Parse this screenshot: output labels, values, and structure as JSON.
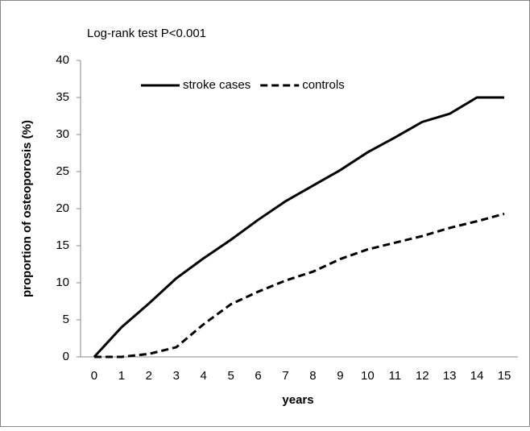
{
  "chart_data": {
    "type": "line",
    "annotation": "Log-rank test P<0.001",
    "xlabel": "years",
    "ylabel": "proportion of osteoporosis (%)",
    "x": [
      0,
      1,
      2,
      3,
      4,
      5,
      6,
      7,
      8,
      9,
      10,
      11,
      12,
      13,
      14,
      15
    ],
    "series": [
      {
        "name": "stroke cases",
        "color": "#000000",
        "dash": "solid",
        "values": [
          0,
          4,
          7.2,
          10.6,
          13.3,
          15.8,
          18.5,
          21,
          23.1,
          25.2,
          27.6,
          29.6,
          31.7,
          32.8,
          35,
          35
        ]
      },
      {
        "name": "controls",
        "color": "#000000",
        "dash": "dashed",
        "values": [
          0,
          0,
          0.4,
          1.3,
          4.4,
          7.1,
          8.8,
          10.3,
          11.5,
          13.2,
          14.5,
          15.4,
          16.3,
          17.4,
          18.3,
          19.3
        ]
      }
    ],
    "xlim": [
      -0.5,
      15.5
    ],
    "xticks": [
      0,
      1,
      2,
      3,
      4,
      5,
      6,
      7,
      8,
      9,
      10,
      11,
      12,
      13,
      14,
      15
    ],
    "ylim": [
      0,
      40
    ],
    "yticks": [
      0,
      5,
      10,
      15,
      20,
      25,
      30,
      35,
      40
    ],
    "grid": false,
    "legend": "top"
  }
}
